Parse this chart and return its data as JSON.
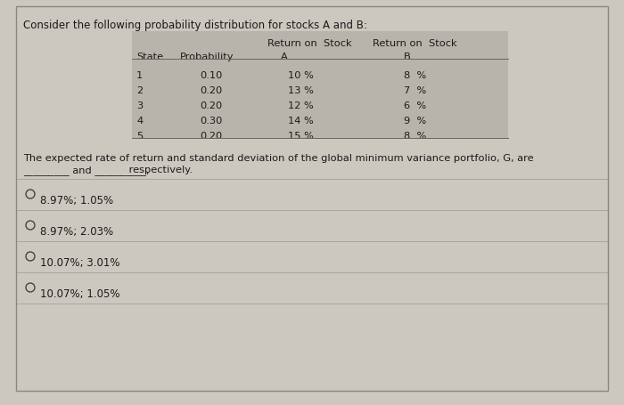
{
  "title": "Consider the following probability distribution for stocks A and B:",
  "table_data": [
    [
      "1",
      "0.10",
      "10 %",
      "8  %"
    ],
    [
      "2",
      "0.20",
      "13 %",
      "7  %"
    ],
    [
      "3",
      "0.20",
      "12 %",
      "6  %"
    ],
    [
      "4",
      "0.30",
      "14 %",
      "9  %"
    ],
    [
      "5",
      "0.20",
      "15 %",
      "8  %"
    ]
  ],
  "question_line1": "The expected rate of return and standard deviation of the global minimum variance portfolio, G, are",
  "question_line2_part1": "_________ and __________,",
  "question_line2_part2": " respectively.",
  "options": [
    "8.97%; 1.05%",
    "8.97%; 2.03%",
    "10.07%; 3.01%",
    "10.07%; 1.05%"
  ],
  "bg_color": "#ccc8c0",
  "table_header_bg": "#b8b4ac",
  "table_row_bg": "#c4c0b8",
  "text_color": "#1a1a1a",
  "line_color": "#a0a098",
  "title_fontsize": 8.5,
  "body_fontsize": 8.2,
  "option_fontsize": 8.5
}
